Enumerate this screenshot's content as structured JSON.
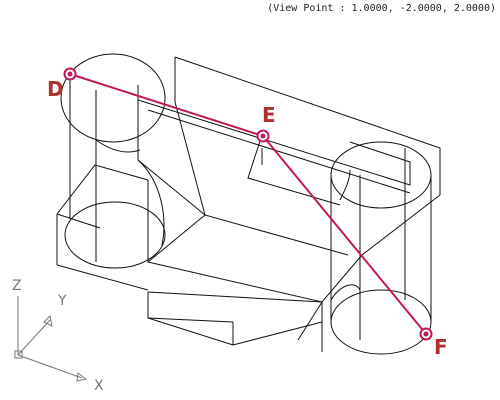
{
  "view_point_text": "(View Point : 1.0000, -2.0000, 2.0000)",
  "points": [
    {
      "id": "D",
      "label": "D"
    },
    {
      "id": "E",
      "label": "E"
    },
    {
      "id": "F",
      "label": "F"
    }
  ],
  "ucs_axes": {
    "x": "X",
    "y": "Y",
    "z": "Z"
  },
  "colors": {
    "wireframe": "#111111",
    "highlight": "#c2185b",
    "axis": "#777777",
    "label": "#b03030"
  }
}
